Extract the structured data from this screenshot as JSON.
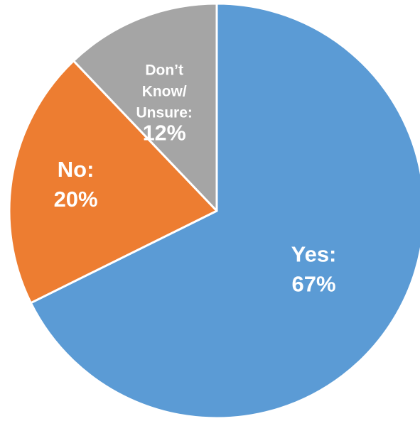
{
  "chart_data": {
    "type": "pie",
    "title": "",
    "start_angle_deg": 0,
    "direction": "clockwise",
    "slices": [
      {
        "name": "Yes",
        "value": 67,
        "label_lines": [
          "Yes:",
          "67%"
        ],
        "color": "#5B9BD5"
      },
      {
        "name": "No",
        "value": 20,
        "label_lines": [
          "No:",
          "20%"
        ],
        "color": "#ED7D31"
      },
      {
        "name": "Don’t Know/ Unsure",
        "value": 12,
        "label_lines": [
          "Don’t",
          "Know/",
          "Unsure:",
          "12%"
        ],
        "color": "#A5A5A5"
      }
    ],
    "slice_border_color": "#ffffff",
    "label_color": "#ffffff",
    "legend": "none"
  }
}
